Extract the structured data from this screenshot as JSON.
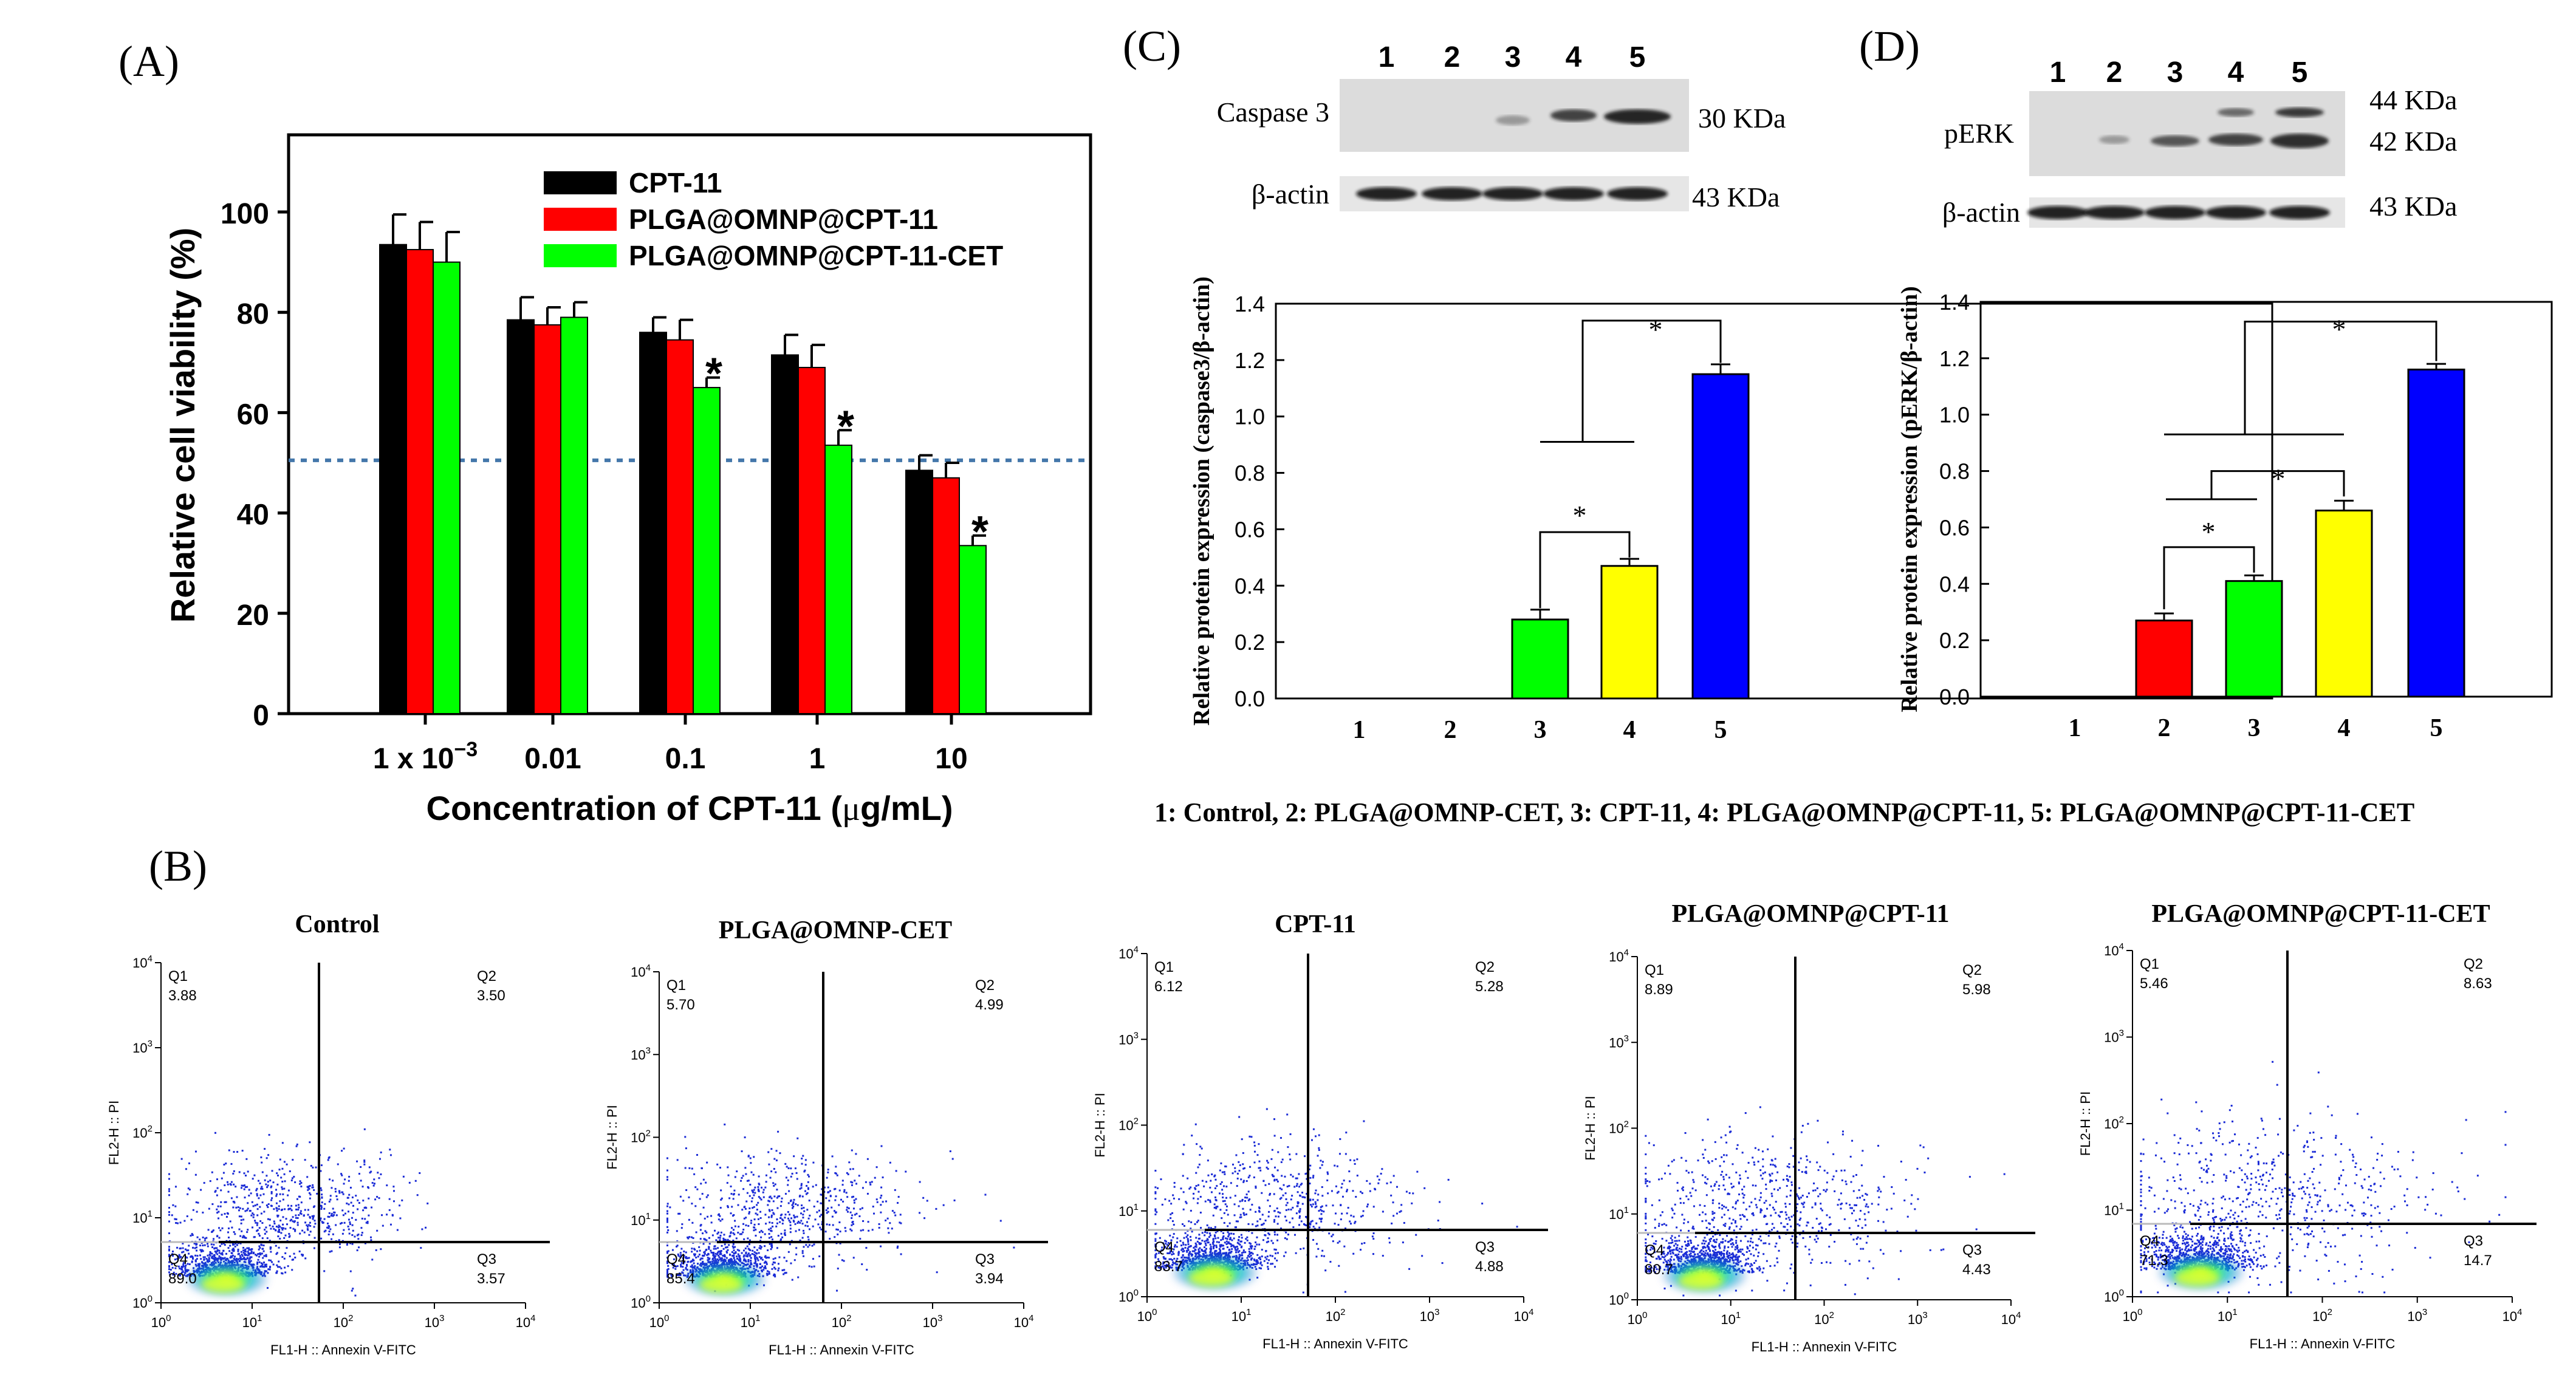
{
  "chart_data": [
    {
      "panel": "(A)",
      "type": "bar",
      "categories": [
        "1 x 10",
        "0.01",
        "0.1",
        "1",
        "10"
      ],
      "category_superscript": [
        "−3",
        "",
        "",
        "",
        ""
      ],
      "series": [
        {
          "name": "CPT-11",
          "values": [
            93.5,
            78.5,
            76,
            71.5,
            48.5
          ],
          "errors": [
            6,
            4.5,
            3,
            4,
            3
          ],
          "color": "#000000"
        },
        {
          "name": "PLGA@OMNP@CPT-11",
          "values": [
            92.5,
            77.5,
            74.5,
            69,
            47
          ],
          "errors": [
            5.5,
            3.5,
            4,
            4.5,
            3
          ],
          "color": "#ff0000"
        },
        {
          "name": "PLGA@OMNP@CPT-11-CET",
          "values": [
            90,
            79,
            65,
            53.5,
            33.5
          ],
          "errors": [
            6,
            3,
            2,
            3,
            2
          ],
          "color": "#00ff00"
        }
      ],
      "significance": [
        {
          "category": 2,
          "marker": "*"
        },
        {
          "category": 3,
          "marker": "*"
        },
        {
          "category": 4,
          "marker": "*"
        }
      ],
      "reference_line": 50.5,
      "yticks": [
        "0",
        "20",
        "40",
        "60",
        "80",
        "100"
      ],
      "xlabel_pre": "Concentration of CPT-11 (",
      "xlabel_mu": "μ",
      "xlabel_post": "g/mL)",
      "ylabel": "Relative cell viability (%)",
      "ylim": [
        0,
        116
      ]
    },
    {
      "panel": "(C)",
      "type": "bar",
      "categories": [
        "1",
        "2",
        "3",
        "4",
        "5"
      ],
      "values": [
        0,
        0,
        0.28,
        0.47,
        1.15
      ],
      "errors": [
        0,
        0,
        0.035,
        0.025,
        0.035
      ],
      "colors": [
        "#ffffff",
        "#ffffff",
        "#00ff00",
        "#ffff00",
        "#0000ff"
      ],
      "ylabel": "Relative protein expression (caspase3/β-actin)",
      "yticks": [
        "0.0",
        "0.2",
        "0.4",
        "0.6",
        "0.8",
        "1.0",
        "1.2",
        "1.4"
      ],
      "ylim": [
        0,
        1.4
      ],
      "significance_marker": "*",
      "blot": {
        "lanes": [
          "1",
          "2",
          "3",
          "4",
          "5"
        ],
        "rows": [
          {
            "label": "Caspase 3",
            "size": "30 KDa"
          },
          {
            "label": "β-actin",
            "size": "43 KDa"
          }
        ]
      }
    },
    {
      "panel": "(D)",
      "type": "bar",
      "categories": [
        "1",
        "2",
        "3",
        "4",
        "5"
      ],
      "values": [
        0,
        0.27,
        0.41,
        0.66,
        1.16
      ],
      "errors": [
        0,
        0.025,
        0.02,
        0.035,
        0.02
      ],
      "colors": [
        "#ffffff",
        "#ff0000",
        "#00ff00",
        "#ffff00",
        "#0000ff"
      ],
      "ylabel": "Relative protein expression (pERK/β-actin)",
      "yticks": [
        "0.0",
        "0.2",
        "0.4",
        "0.6",
        "0.8",
        "1.0",
        "1.2",
        "1.4"
      ],
      "ylim": [
        0,
        1.4
      ],
      "significance_marker": "*",
      "blot": {
        "lanes": [
          "1",
          "2",
          "3",
          "4",
          "5"
        ],
        "rows": [
          {
            "label": "pERK",
            "size": "44 KDa",
            "size2": "42 KDa"
          },
          {
            "label": "β-actin",
            "size": "43 KDa"
          }
        ]
      }
    },
    {
      "panel": "(B)",
      "type": "scatter",
      "xlabel": "FL1-H :: Annexin V-FITC",
      "ylabel": "FL2-H :: PI",
      "axis_ticks": [
        "10",
        "10",
        "10",
        "10",
        "10"
      ],
      "axis_exp": [
        "0",
        "1",
        "2",
        "3",
        "4"
      ],
      "quadrant_names": [
        "Q1",
        "Q2",
        "Q3",
        "Q4"
      ],
      "plots": [
        {
          "title": "Control",
          "Q1": "3.88",
          "Q2": "3.50",
          "Q3": "3.57",
          "Q4": "89.0"
        },
        {
          "title": "PLGA@OMNP-CET",
          "Q1": "5.70",
          "Q2": "4.99",
          "Q3": "3.94",
          "Q4": "85.4"
        },
        {
          "title": "CPT-11",
          "Q1": "6.12",
          "Q2": "5.28",
          "Q3": "4.88",
          "Q4": "83.7"
        },
        {
          "title": "PLGA@OMNP@CPT-11",
          "Q1": "8.89",
          "Q2": "5.98",
          "Q3": "4.43",
          "Q4": "80.7"
        },
        {
          "title": "PLGA@OMNP@CPT-11-CET",
          "Q1": "5.46",
          "Q2": "8.63",
          "Q3": "14.7",
          "Q4": "71.3"
        }
      ]
    }
  ],
  "legend_text": "1: Control, 2: PLGA@OMNP-CET, 3: CPT-11, 4: PLGA@OMNP@CPT-11, 5: PLGA@OMNP@CPT-11-CET"
}
